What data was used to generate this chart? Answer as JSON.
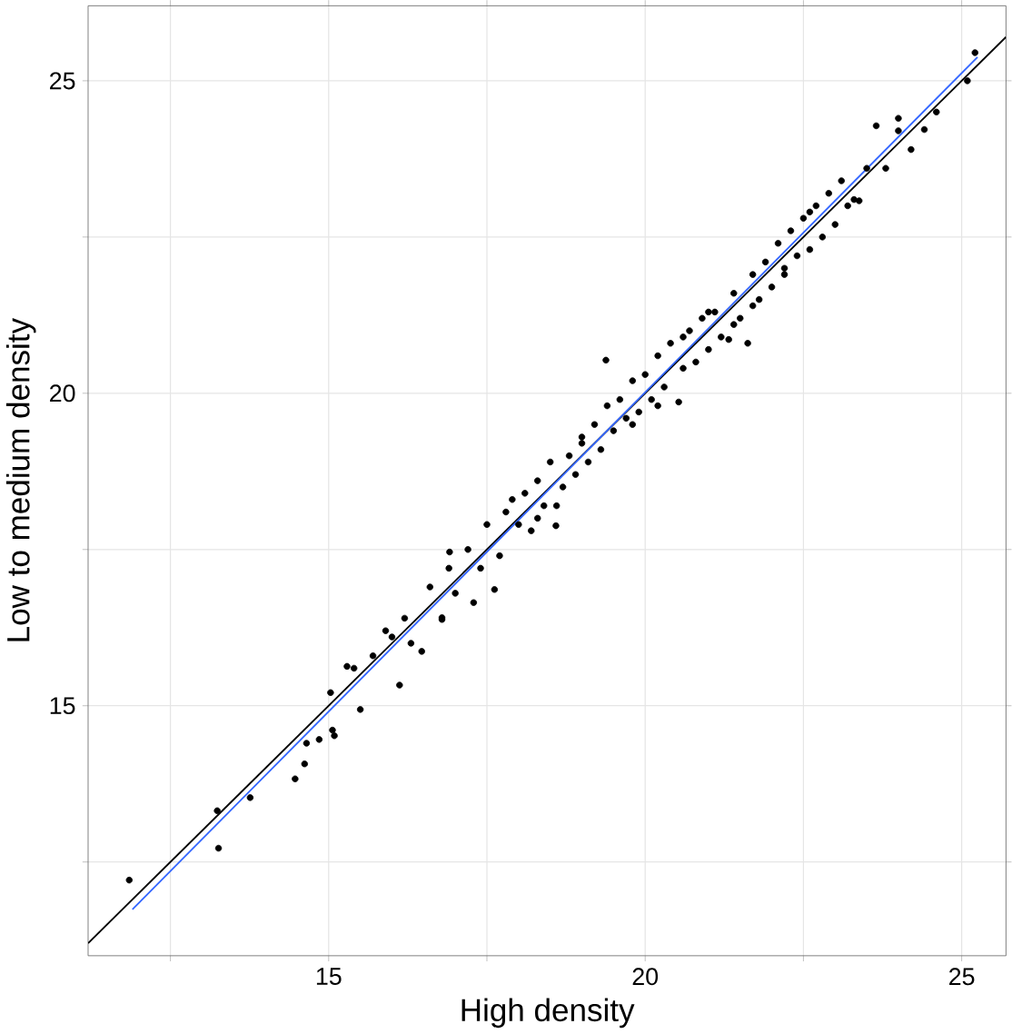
{
  "chart_data": {
    "type": "scatter",
    "xlabel": "High density",
    "ylabel": "Low to medium density",
    "xlim": [
      11.2,
      25.7
    ],
    "ylim": [
      11.0,
      26.2
    ],
    "xticks": [
      {
        "value": 12.5,
        "label": null
      },
      15,
      {
        "value": 17.5,
        "label": null
      },
      20,
      {
        "value": 22.5,
        "label": null
      },
      25
    ],
    "yticks": [
      {
        "value": 12.5,
        "label": null
      },
      15,
      {
        "value": 17.5,
        "label": null
      },
      20,
      {
        "value": 22.5,
        "label": null
      },
      25
    ],
    "grid": true,
    "series": [
      {
        "type": "scatter",
        "marker": "circle",
        "color": "#000000",
        "x": [
          11.85,
          13.24,
          13.26,
          13.76,
          14.47,
          14.62,
          14.65,
          14.85,
          15.09,
          15.06,
          15.03,
          15.29,
          15.5,
          16.12,
          16.47,
          16.79,
          17.29,
          17.62,
          16.91,
          16.79,
          15.4,
          15.7,
          15.9,
          16.0,
          16.2,
          16.3,
          16.6,
          16.9,
          17.0,
          17.2,
          17.4,
          17.5,
          17.7,
          17.8,
          18.0,
          18.1,
          18.2,
          18.3,
          18.4,
          18.5,
          18.59,
          18.7,
          18.8,
          18.9,
          19.0,
          19.1,
          19.2,
          19.3,
          19.38,
          19.5,
          19.6,
          19.7,
          19.8,
          19.9,
          20.0,
          20.1,
          20.2,
          20.3,
          20.4,
          20.53,
          20.6,
          20.7,
          20.8,
          20.9,
          21.0,
          21.1,
          21.2,
          21.32,
          21.4,
          21.5,
          21.62,
          21.7,
          21.8,
          21.9,
          22.0,
          22.1,
          22.2,
          22.3,
          22.4,
          22.5,
          22.6,
          22.7,
          22.8,
          22.9,
          23.0,
          23.1,
          23.2,
          23.38,
          23.5,
          23.65,
          23.8,
          24.0,
          24.2,
          24.41,
          24.6,
          25.09,
          25.21,
          17.9,
          18.6,
          19.4,
          20.2,
          21.0,
          21.7,
          22.6,
          23.3,
          24.0,
          18.3,
          19.0,
          19.8,
          20.6,
          21.4,
          22.2
        ],
        "values": [
          12.21,
          13.32,
          12.72,
          13.53,
          13.83,
          14.07,
          14.4,
          14.46,
          14.52,
          14.61,
          15.21,
          15.63,
          14.94,
          15.33,
          15.87,
          16.38,
          16.65,
          16.86,
          17.46,
          16.41,
          15.6,
          15.8,
          16.2,
          16.1,
          16.4,
          16.0,
          16.9,
          17.2,
          16.8,
          17.5,
          17.2,
          17.9,
          17.4,
          18.1,
          17.9,
          18.4,
          17.8,
          18.6,
          18.2,
          18.9,
          17.88,
          18.5,
          19.0,
          18.7,
          19.3,
          18.9,
          19.5,
          19.1,
          20.53,
          19.4,
          19.9,
          19.6,
          20.2,
          19.7,
          20.3,
          19.9,
          20.6,
          20.1,
          20.8,
          19.86,
          20.4,
          21.0,
          20.5,
          21.2,
          20.7,
          21.3,
          20.9,
          20.86,
          21.6,
          21.2,
          20.8,
          21.9,
          21.5,
          22.1,
          21.7,
          22.4,
          21.9,
          22.6,
          22.2,
          22.8,
          22.3,
          23.0,
          22.5,
          23.2,
          22.7,
          23.4,
          23.0,
          23.08,
          23.6,
          24.28,
          23.6,
          24.2,
          23.9,
          24.22,
          24.5,
          25.0,
          25.45,
          18.3,
          18.2,
          19.8,
          19.8,
          21.3,
          21.4,
          22.9,
          23.1,
          24.4,
          18.0,
          19.2,
          19.5,
          20.9,
          21.1,
          22.0
        ]
      },
      {
        "type": "line",
        "color": "#000000",
        "marker": "none",
        "x": [
          11.2,
          25.7
        ],
        "values": [
          11.2,
          25.7
        ]
      },
      {
        "type": "line",
        "color": "#3366ff",
        "marker": "none",
        "x": [
          11.9,
          25.25
        ],
        "values": [
          11.74,
          25.38
        ]
      }
    ]
  }
}
